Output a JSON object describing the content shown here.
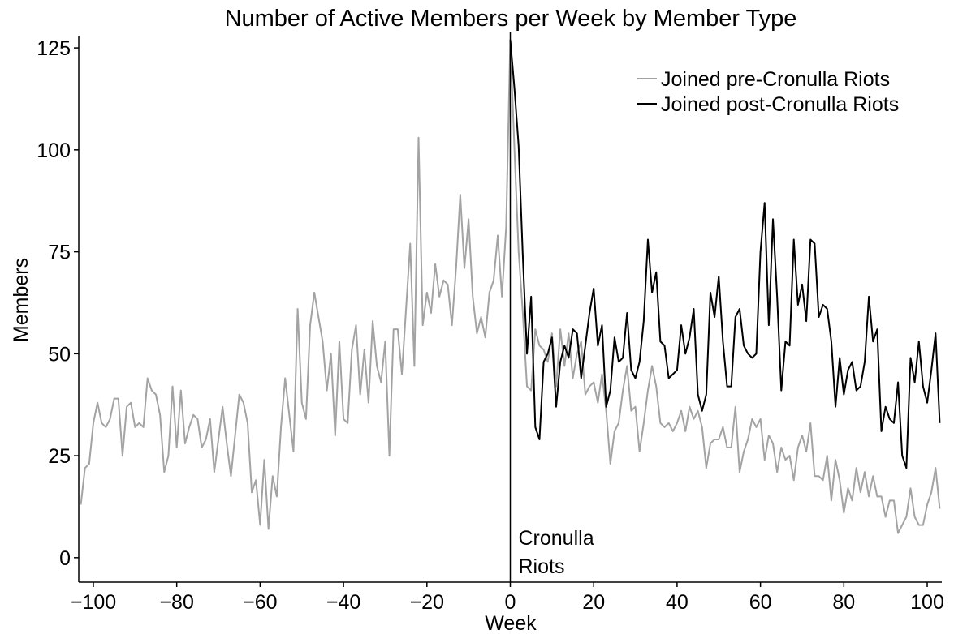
{
  "chart_data": {
    "type": "line",
    "title": "Number of Active Members per Week by Member Type",
    "xlabel": "Week",
    "ylabel": "Members",
    "xlim": [
      -103.5,
      103.5
    ],
    "ylim": [
      -6,
      128
    ],
    "xticks": [
      {
        "value": -100,
        "label": "−100"
      },
      {
        "value": -80,
        "label": "−80"
      },
      {
        "value": -60,
        "label": "−60"
      },
      {
        "value": -40,
        "label": "−40"
      },
      {
        "value": -20,
        "label": "−20"
      },
      0,
      20,
      40,
      60,
      80,
      100
    ],
    "yticks": [
      0,
      25,
      50,
      75,
      100,
      125
    ],
    "legend": "upper right",
    "annotation": {
      "x": 0,
      "lines": [
        "Cronulla",
        "Riots"
      ]
    },
    "series": [
      {
        "name": "Joined pre-Cronulla Riots",
        "color": "#a3a3a3",
        "x": [
          -103,
          -102,
          -101,
          -100,
          -99,
          -98,
          -97,
          -96,
          -95,
          -94,
          -93,
          -92,
          -91,
          -90,
          -89,
          -88,
          -87,
          -86,
          -85,
          -84,
          -83,
          -82,
          -81,
          -80,
          -79,
          -78,
          -77,
          -76,
          -75,
          -74,
          -73,
          -72,
          -71,
          -70,
          -69,
          -68,
          -67,
          -66,
          -65,
          -64,
          -63,
          -62,
          -61,
          -60,
          -59,
          -58,
          -57,
          -56,
          -55,
          -54,
          -53,
          -52,
          -51,
          -50,
          -49,
          -48,
          -47,
          -46,
          -45,
          -44,
          -43,
          -42,
          -41,
          -40,
          -39,
          -38,
          -37,
          -36,
          -35,
          -34,
          -33,
          -32,
          -31,
          -30,
          -29,
          -28,
          -27,
          -26,
          -25,
          -24,
          -23,
          -22,
          -21,
          -20,
          -19,
          -18,
          -17,
          -16,
          -15,
          -14,
          -13,
          -12,
          -11,
          -10,
          -9,
          -8,
          -7,
          -6,
          -5,
          -4,
          -3,
          -2,
          -1,
          0,
          1,
          2,
          3,
          4,
          5,
          6,
          7,
          8,
          9,
          10,
          11,
          12,
          13,
          14,
          15,
          16,
          17,
          18,
          19,
          20,
          21,
          22,
          23,
          24,
          25,
          26,
          27,
          28,
          29,
          30,
          31,
          32,
          33,
          34,
          35,
          36,
          37,
          38,
          39,
          40,
          41,
          42,
          43,
          44,
          45,
          46,
          47,
          48,
          49,
          50,
          51,
          52,
          53,
          54,
          55,
          56,
          57,
          58,
          59,
          60,
          61,
          62,
          63,
          64,
          65,
          66,
          67,
          68,
          69,
          70,
          71,
          72,
          73,
          74,
          75,
          76,
          77,
          78,
          79,
          80,
          81,
          82,
          83,
          84,
          85,
          86,
          87,
          88,
          89,
          90,
          91,
          92,
          93,
          94,
          95,
          96,
          97,
          98,
          99,
          100,
          101,
          102,
          103
        ],
        "values": [
          13,
          22,
          23,
          33,
          38,
          33,
          32,
          34,
          39,
          39,
          25,
          37,
          38,
          32,
          33,
          32,
          44,
          41,
          40,
          35,
          21,
          25,
          42,
          27,
          41,
          28,
          32,
          35,
          34,
          27,
          29,
          34,
          21,
          29,
          37,
          28,
          20,
          30,
          40,
          38,
          33,
          16,
          19,
          8,
          24,
          7,
          20,
          15,
          32,
          44,
          35,
          26,
          61,
          38,
          34,
          57,
          65,
          59,
          53,
          41,
          50,
          30,
          53,
          34,
          33,
          51,
          57,
          40,
          51,
          38,
          58,
          47,
          43,
          53,
          25,
          56,
          56,
          45,
          61,
          77,
          47,
          103,
          57,
          65,
          60,
          72,
          64,
          68,
          67,
          57,
          71,
          89,
          71,
          83,
          64,
          55,
          59,
          54,
          65,
          68,
          79,
          64,
          81,
          127,
          100,
          75,
          60,
          42,
          41,
          56,
          52,
          51,
          48,
          55,
          42,
          56,
          47,
          55,
          44,
          50,
          53,
          40,
          42,
          43,
          38,
          45,
          36,
          23,
          31,
          33,
          41,
          47,
          36,
          37,
          26,
          33,
          41,
          47,
          42,
          33,
          32,
          33,
          31,
          33,
          36,
          31,
          37,
          34,
          36,
          32,
          22,
          28,
          29,
          29,
          32,
          27,
          27,
          37,
          21,
          26,
          29,
          34,
          32,
          34,
          24,
          30,
          28,
          21,
          27,
          24,
          25,
          19,
          27,
          30,
          26,
          33,
          20,
          20,
          19,
          25,
          14,
          24,
          19,
          11,
          17,
          14,
          22,
          16,
          21,
          15,
          20,
          15,
          15,
          10,
          14,
          14,
          6,
          8,
          10,
          17,
          10,
          8,
          8,
          13,
          16,
          22,
          12
        ]
      },
      {
        "name": "Joined post-Cronulla Riots",
        "color": "#000000",
        "x": [
          0,
          1,
          2,
          3,
          4,
          5,
          6,
          7,
          8,
          9,
          10,
          11,
          12,
          13,
          14,
          15,
          16,
          17,
          18,
          19,
          20,
          21,
          22,
          23,
          24,
          25,
          26,
          27,
          28,
          29,
          30,
          31,
          32,
          33,
          34,
          35,
          36,
          37,
          38,
          39,
          40,
          41,
          42,
          43,
          44,
          45,
          46,
          47,
          48,
          49,
          50,
          51,
          52,
          53,
          54,
          55,
          56,
          57,
          58,
          59,
          60,
          61,
          62,
          63,
          64,
          65,
          66,
          67,
          68,
          69,
          70,
          71,
          72,
          73,
          74,
          75,
          76,
          77,
          78,
          79,
          80,
          81,
          82,
          83,
          84,
          85,
          86,
          87,
          88,
          89,
          90,
          91,
          92,
          93,
          94,
          95,
          96,
          97,
          98,
          99,
          100,
          101,
          102,
          103
        ],
        "values": [
          127,
          115,
          101,
          74,
          50,
          64,
          32,
          29,
          48,
          50,
          54,
          37,
          48,
          52,
          49,
          56,
          55,
          44,
          52,
          60,
          66,
          52,
          57,
          37,
          41,
          54,
          48,
          49,
          60,
          46,
          44,
          48,
          58,
          78,
          65,
          70,
          53,
          52,
          44,
          45,
          46,
          57,
          50,
          54,
          61,
          40,
          36,
          40,
          65,
          59,
          69,
          53,
          42,
          42,
          59,
          61,
          52,
          50,
          49,
          50,
          75,
          87,
          57,
          83,
          64,
          41,
          53,
          52,
          78,
          62,
          67,
          58,
          78,
          77,
          59,
          62,
          61,
          53,
          37,
          49,
          40,
          46,
          48,
          41,
          42,
          48,
          64,
          53,
          56,
          31,
          37,
          34,
          33,
          43,
          25,
          22,
          49,
          43,
          53,
          42,
          38,
          46,
          55,
          33
        ]
      }
    ]
  }
}
